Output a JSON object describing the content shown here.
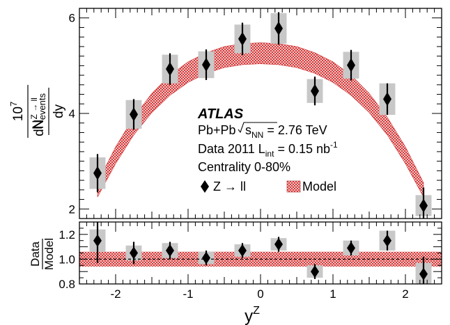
{
  "chart_data": [
    {
      "type": "scatter",
      "panel": "main",
      "xlabel": "y",
      "xlabel_sup": "Z",
      "ylabel": {
        "factor_num": "10",
        "factor_sup": "7",
        "factor_den": "N",
        "factor_den_sub": "events",
        "deriv_num": "dN",
        "deriv_sup": "Z → ll",
        "deriv_den": "dy"
      },
      "xlim": [
        -2.5,
        2.5
      ],
      "ylim": [
        1.8,
        6.2
      ],
      "yticks": [
        2,
        4,
        6
      ],
      "xticks": [
        -2,
        -1,
        0,
        1,
        2
      ],
      "series": [
        {
          "name": "Z → ll",
          "marker": "diamond",
          "color": "#000000",
          "syst_color": "#c8c8c8",
          "x": [
            -2.25,
            -1.75,
            -1.25,
            -0.75,
            -0.25,
            0.25,
            0.75,
            1.25,
            1.75,
            2.25
          ],
          "y": [
            2.75,
            3.98,
            4.93,
            5.02,
            5.56,
            5.78,
            4.47,
            5.01,
            4.3,
            2.07
          ],
          "stat": [
            0.4,
            0.32,
            0.33,
            0.32,
            0.34,
            0.34,
            0.3,
            0.32,
            0.33,
            0.38
          ],
          "syst": [
            0.33,
            0.3,
            0.3,
            0.28,
            0.3,
            0.32,
            0.25,
            0.28,
            0.33,
            0.22
          ]
        },
        {
          "name": "Model",
          "type": "band",
          "color": "#d94040",
          "x": [
            -2.25,
            -2.0,
            -1.75,
            -1.5,
            -1.25,
            -1.0,
            -0.75,
            -0.5,
            -0.25,
            0.0,
            0.25,
            0.5,
            0.75,
            1.0,
            1.25,
            1.5,
            1.75,
            2.0,
            2.25
          ],
          "lower": [
            2.25,
            2.95,
            3.55,
            4.02,
            4.38,
            4.65,
            4.84,
            4.96,
            5.02,
            5.04,
            5.02,
            4.96,
            4.84,
            4.65,
            4.38,
            4.02,
            3.55,
            2.95,
            2.25
          ],
          "upper": [
            2.55,
            3.3,
            3.92,
            4.42,
            4.8,
            5.08,
            5.27,
            5.4,
            5.46,
            5.48,
            5.46,
            5.4,
            5.27,
            5.08,
            4.8,
            4.42,
            3.92,
            3.3,
            2.55
          ]
        }
      ],
      "legend": {
        "placement": "center",
        "experiment": "ATLAS",
        "system": "Pb+Pb",
        "energy_sym": "s",
        "energy_sub": "NN",
        "energy_val": " = 2.76 TeV",
        "data_text": "Data 2011 L",
        "data_sub": "int",
        "data_val": " = 0.15 nb",
        "data_sup": "-1",
        "centrality": "Centrality 0-80%",
        "entry_data": "Z → ll",
        "entry_model": "Model"
      }
    },
    {
      "type": "scatter",
      "panel": "ratio",
      "ylabel_num": "Data",
      "ylabel_den": "Model",
      "xlim": [
        -2.5,
        2.5
      ],
      "ylim": [
        0.8,
        1.3
      ],
      "yticks": [
        "0.8",
        "1.0",
        "1.2"
      ],
      "reference_line": 1.0,
      "band_lower": 0.94,
      "band_upper": 1.06,
      "x": [
        -2.25,
        -1.75,
        -1.25,
        -0.75,
        -0.25,
        0.25,
        0.75,
        1.25,
        1.75,
        2.25
      ],
      "y": [
        1.15,
        1.05,
        1.07,
        1.01,
        1.07,
        1.12,
        0.9,
        1.09,
        1.15,
        0.88
      ],
      "stat": [
        0.18,
        0.09,
        0.07,
        0.06,
        0.06,
        0.06,
        0.06,
        0.06,
        0.08,
        0.14
      ],
      "syst": [
        0.09,
        0.06,
        0.06,
        0.05,
        0.05,
        0.05,
        0.05,
        0.06,
        0.08,
        0.09
      ]
    }
  ]
}
